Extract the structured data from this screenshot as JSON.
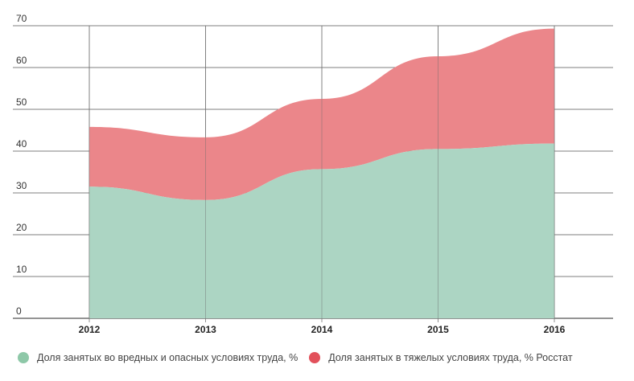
{
  "chart_data": {
    "type": "area",
    "stacked": true,
    "title": "",
    "xlabel": "",
    "ylabel": "",
    "categories": [
      "2012",
      "2013",
      "2014",
      "2015",
      "2016"
    ],
    "ylim": [
      0,
      70
    ],
    "yticks": [
      0,
      10,
      20,
      30,
      40,
      50,
      60,
      70
    ],
    "grid": true,
    "legend_position": "bottom-left",
    "series": [
      {
        "name": "Доля занятых во вредных и опасных условиях труда, %",
        "color": "#acd5c3",
        "legend_color": "#8ec8a8",
        "values": [
          31.5,
          28.3,
          35.7,
          40.5,
          41.8
        ]
      },
      {
        "name": "Доля занятых в тяжелых условиях труда, % Росстат",
        "color": "#eb868a",
        "legend_color": "#e2515b",
        "values": [
          14.3,
          15.0,
          16.8,
          22.2,
          27.5
        ]
      }
    ]
  }
}
